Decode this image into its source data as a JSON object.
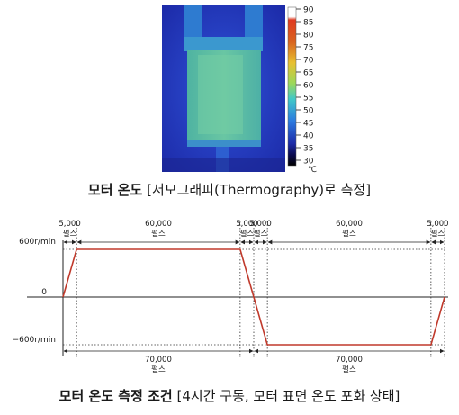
{
  "thermo_caption": {
    "bold": "모터 온도",
    "rest": "[서모그래피(Thermography)로 측정]"
  },
  "colorbar": {
    "ticks": [
      "90",
      "85",
      "80",
      "75",
      "70",
      "65",
      "60",
      "55",
      "50",
      "45",
      "40",
      "35",
      "30"
    ],
    "unit": "℃"
  },
  "profile_caption": {
    "bold": "모터 온도 측정 조건",
    "rest": "[4시간 구동, 모터 표면 온도 포화 상태]"
  },
  "chart_data": {
    "type": "line",
    "y_labels": {
      "top": "600r/min",
      "zero": "0",
      "bottom": "−600r/min"
    },
    "x": [
      0,
      5000,
      65000,
      70000,
      75000,
      135000,
      140000
    ],
    "y": [
      0,
      600,
      600,
      0,
      -600,
      -600,
      0
    ],
    "ylim": [
      -600,
      600
    ],
    "segments_top": [
      {
        "value": "5,000",
        "unit": "펄스"
      },
      {
        "value": "60,000",
        "unit": "펄스"
      },
      {
        "value": "5,000",
        "unit": "펄스"
      },
      {
        "value": "5,000",
        "unit": "펄스"
      },
      {
        "value": "60,000",
        "unit": "펄스"
      },
      {
        "value": "5,000",
        "unit": "펄스"
      }
    ],
    "segments_bottom": [
      {
        "value": "70,000",
        "unit": "펄스"
      },
      {
        "value": "70,000",
        "unit": "펄스"
      }
    ],
    "colors": {
      "profile": "#c0392b",
      "axis": "#222222"
    }
  }
}
